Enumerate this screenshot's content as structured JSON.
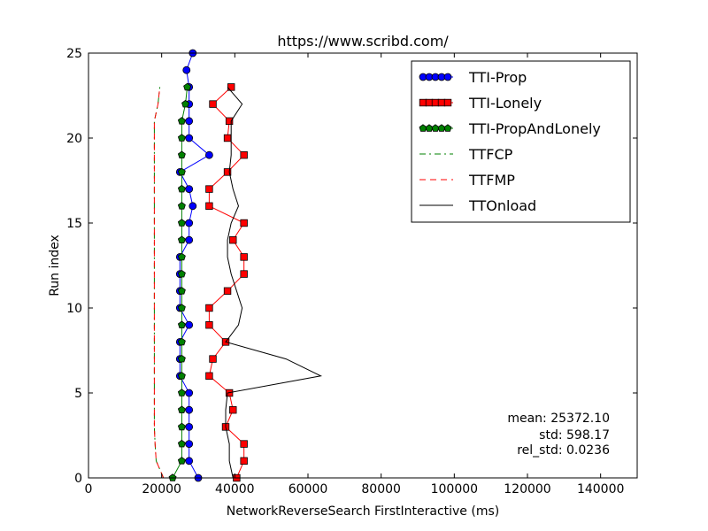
{
  "chart_data": {
    "type": "line",
    "title": "https://www.scribd.com/",
    "xlabel": "NetworkReverseSearch FirstInteractive (ms)",
    "ylabel": "Run index",
    "xlim": [
      0,
      150000
    ],
    "ylim": [
      0,
      25
    ],
    "xticks": [
      0,
      20000,
      40000,
      60000,
      80000,
      100000,
      120000,
      140000
    ],
    "xtick_labels": [
      "0",
      "20000",
      "40000",
      "60000",
      "80000",
      "100000",
      "120000",
      "140000"
    ],
    "yticks": [
      0,
      5,
      10,
      15,
      20,
      25
    ],
    "ytick_labels": [
      "0",
      "5",
      "10",
      "15",
      "20",
      "25"
    ],
    "grid": false,
    "legend_position": "top-right",
    "series": [
      {
        "name": "TTI-Prop",
        "color": "#0000ff",
        "marker": "circle",
        "linestyle": "solid",
        "x": [
          30000,
          27500,
          27500,
          27500,
          27500,
          27500,
          25000,
          25000,
          25000,
          27500,
          25000,
          25000,
          25000,
          25000,
          27500,
          27500,
          28500,
          27500,
          25000,
          33000,
          27500,
          27500,
          27500,
          27500,
          26800,
          28500
        ],
        "y": [
          0,
          1,
          2,
          3,
          4,
          5,
          6,
          7,
          8,
          9,
          10,
          11,
          12,
          13,
          14,
          15,
          16,
          17,
          18,
          19,
          20,
          21,
          22,
          23,
          24,
          25
        ]
      },
      {
        "name": "TTI-Lonely",
        "color": "#ff0000",
        "marker": "square",
        "linestyle": "solid",
        "x": [
          40500,
          42500,
          42500,
          37500,
          39500,
          38500,
          33000,
          34000,
          37500,
          33000,
          33000,
          38000,
          42500,
          42500,
          39500,
          42500,
          33000,
          33000,
          38000,
          42500,
          38000,
          38500,
          34000,
          39000
        ],
        "y": [
          0,
          1,
          2,
          3,
          4,
          5,
          6,
          7,
          8,
          9,
          10,
          11,
          12,
          13,
          14,
          15,
          16,
          17,
          18,
          19,
          20,
          21,
          22,
          23
        ]
      },
      {
        "name": "TTI-PropAndLonely",
        "color": "#008000",
        "marker": "pentagon",
        "linestyle": "solid",
        "x": [
          23000,
          25500,
          25500,
          25500,
          25500,
          25500,
          25500,
          25500,
          25500,
          25500,
          25500,
          25500,
          25500,
          25500,
          25500,
          25500,
          25500,
          25500,
          25500,
          25500,
          25500,
          25500,
          26500,
          27000
        ],
        "y": [
          0,
          1,
          2,
          3,
          4,
          5,
          6,
          7,
          8,
          9,
          10,
          11,
          12,
          13,
          14,
          15,
          16,
          17,
          18,
          19,
          20,
          21,
          22,
          23
        ]
      },
      {
        "name": "TTFCP",
        "color": "#008000",
        "marker": "none",
        "linestyle": "dashdot",
        "x": [
          20500,
          18500,
          18200,
          18000,
          18000,
          18000,
          18000,
          18000,
          18000,
          18000,
          18000,
          18000,
          18000,
          18000,
          18000,
          18000,
          18000,
          18000,
          18000,
          18000,
          18000,
          18000,
          19000,
          19500
        ],
        "y": [
          0,
          1,
          2,
          3,
          4,
          5,
          6,
          7,
          8,
          9,
          10,
          11,
          12,
          13,
          14,
          15,
          16,
          17,
          18,
          19,
          20,
          21,
          22,
          23
        ]
      },
      {
        "name": "TTFMP",
        "color": "#ff0000",
        "marker": "none",
        "linestyle": "dashed",
        "x": [
          20500,
          18500,
          18200,
          18000,
          18000,
          18000,
          18000,
          18000,
          18000,
          18000,
          18000,
          18000,
          18000,
          18000,
          18000,
          18000,
          18000,
          18000,
          18000,
          18000,
          18000,
          18000,
          19000,
          19500
        ],
        "y": [
          0,
          1,
          2,
          3,
          4,
          5,
          6,
          7,
          8,
          9,
          10,
          11,
          12,
          13,
          14,
          15,
          16,
          17,
          18,
          19,
          20,
          21,
          22,
          23
        ]
      },
      {
        "name": "TTOnload",
        "color": "#000000",
        "marker": "none",
        "linestyle": "solid",
        "x": [
          39500,
          38500,
          38500,
          37500,
          37500,
          38000,
          63500,
          54000,
          37500,
          41000,
          42000,
          40500,
          39000,
          38000,
          38000,
          39000,
          41000,
          39500,
          38500,
          39000,
          39000,
          39000,
          42000,
          38000
        ],
        "y": [
          0,
          1,
          2,
          3,
          4,
          5,
          6,
          7,
          8,
          9,
          10,
          11,
          12,
          13,
          14,
          15,
          16,
          17,
          18,
          19,
          20,
          21,
          22,
          23
        ]
      }
    ],
    "stats": {
      "mean": "mean: 25372.10",
      "std": "std: 598.17",
      "rel_std": "rel_std: 0.0236"
    }
  }
}
